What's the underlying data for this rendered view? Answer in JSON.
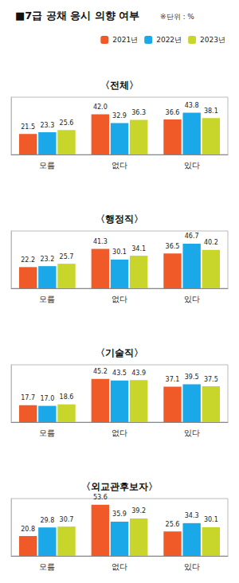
{
  "title": "■7급 공채 응시 의향 여부",
  "subtitle": "※단위 : %",
  "chart_data": [
    {
      "type": "bar",
      "title": "〈전체〉",
      "categories": [
        "모름",
        "없다",
        "있다"
      ],
      "series": [
        {
          "name": "2021년",
          "color": "#f05a28",
          "values": [
            21.5,
            42.0,
            36.6
          ],
          "value_labels": [
            "21.5",
            "42.0",
            "36.6"
          ]
        },
        {
          "name": "2022년",
          "color": "#1ba8e8",
          "values": [
            23.3,
            32.9,
            43.8
          ],
          "value_labels": [
            "23.3",
            "32.9",
            "43.8"
          ]
        },
        {
          "name": "2023년",
          "color": "#c8d62b",
          "values": [
            25.6,
            36.3,
            38.1
          ],
          "value_labels": [
            "25.6",
            "36.3",
            "38.1"
          ]
        }
      ],
      "ylim": [
        0,
        60
      ],
      "yticks": [
        0,
        60
      ],
      "grid": false,
      "data_labels": true,
      "tick_labels": "x",
      "legend": "top-right"
    },
    {
      "type": "bar",
      "title": "〈행정직〉",
      "categories": [
        "모름",
        "없다",
        "있다"
      ],
      "series": [
        {
          "name": "2021년",
          "color": "#f05a28",
          "values": [
            22.2,
            41.3,
            36.5
          ],
          "value_labels": [
            "22.2",
            "41.3",
            "36.5"
          ]
        },
        {
          "name": "2022년",
          "color": "#1ba8e8",
          "values": [
            23.2,
            30.1,
            46.7
          ],
          "value_labels": [
            "23.2",
            "30.1",
            "46.7"
          ]
        },
        {
          "name": "2023년",
          "color": "#c8d62b",
          "values": [
            25.7,
            34.1,
            40.2
          ],
          "value_labels": [
            "25.7",
            "34.1",
            "40.2"
          ]
        }
      ],
      "ylim": [
        0,
        60
      ],
      "yticks": [
        0,
        60
      ],
      "grid": false,
      "data_labels": true,
      "tick_labels": "x"
    },
    {
      "type": "bar",
      "title": "〈기술직〉",
      "categories": [
        "모름",
        "없다",
        "있다"
      ],
      "series": [
        {
          "name": "2021년",
          "color": "#f05a28",
          "values": [
            17.7,
            45.2,
            37.1
          ],
          "value_labels": [
            "17.7",
            "45.2",
            "37.1"
          ]
        },
        {
          "name": "2022년",
          "color": "#1ba8e8",
          "values": [
            17.0,
            43.5,
            39.5
          ],
          "value_labels": [
            "17.0",
            "43.5",
            "39.5"
          ]
        },
        {
          "name": "2023년",
          "color": "#c8d62b",
          "values": [
            18.6,
            43.9,
            37.5
          ],
          "value_labels": [
            "18.6",
            "43.9",
            "37.5"
          ]
        }
      ],
      "ylim": [
        0,
        60
      ],
      "yticks": [
        0,
        60
      ],
      "grid": false,
      "data_labels": true,
      "tick_labels": "x"
    },
    {
      "type": "bar",
      "title": "〈외교관후보자〉",
      "categories": [
        "모름",
        "없다",
        "있다"
      ],
      "series": [
        {
          "name": "2021년",
          "color": "#f05a28",
          "values": [
            20.8,
            53.6,
            25.6
          ],
          "value_labels": [
            "20.8",
            "53.6",
            "25.6"
          ]
        },
        {
          "name": "2022년",
          "color": "#1ba8e8",
          "values": [
            29.8,
            35.9,
            34.3
          ],
          "value_labels": [
            "29.8",
            "35.9",
            "34.3"
          ]
        },
        {
          "name": "2023년",
          "color": "#c8d62b",
          "values": [
            30.7,
            39.2,
            30.1
          ],
          "value_labels": [
            "30.7",
            "39.2",
            "30.1"
          ]
        }
      ],
      "ylim": [
        0,
        60
      ],
      "yticks": [
        0,
        60
      ],
      "grid": false,
      "data_labels": true,
      "tick_labels": "x"
    }
  ]
}
